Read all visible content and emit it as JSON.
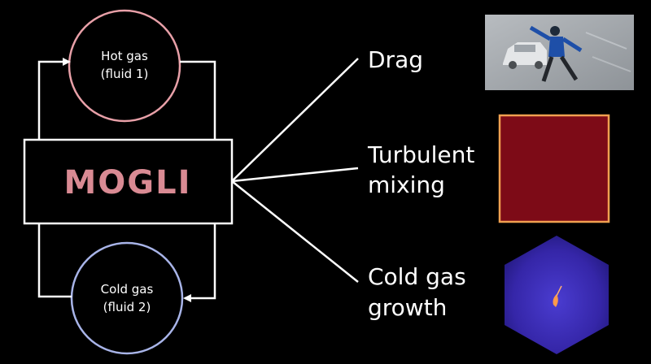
{
  "diagram": {
    "hot_gas": {
      "line1": "Hot gas",
      "line2": "(fluid 1)"
    },
    "cold_gas": {
      "line1": "Cold gas",
      "line2": "(fluid 2)"
    },
    "center": {
      "label": "MOGLI"
    },
    "items": [
      {
        "lines": [
          "Drag"
        ]
      },
      {
        "lines": [
          "Turbulent",
          "mixing"
        ]
      },
      {
        "lines": [
          "Cold gas",
          "growth"
        ]
      }
    ],
    "colors": {
      "background": "#000000",
      "hot_gas_circle": "#e8a0a8",
      "cold_gas_circle": "#a8b4e8",
      "mogli_text": "#d98a93",
      "lines": "#ffffff",
      "turbulence_fill": "#7d0b17",
      "turbulence_border": "#f0a050",
      "growth_fill": "#3b2bb0"
    }
  }
}
